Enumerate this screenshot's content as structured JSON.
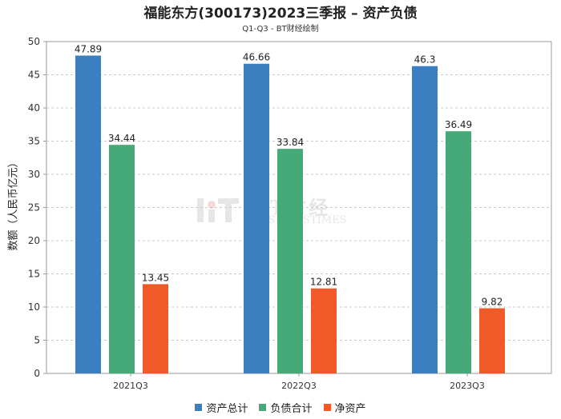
{
  "title": "福能东方(300173)2023三季报 – 资产负债",
  "subtitle": "Q1-Q3 - BT财经绘制",
  "watermark": {
    "main": "BT财经",
    "sub": "BUSINESSTIMES"
  },
  "chart_data": {
    "type": "bar",
    "ylabel": "数额（人民币亿元）",
    "xlabel": "",
    "ylim": [
      0,
      50
    ],
    "yticks": [
      0,
      5,
      10,
      15,
      20,
      25,
      30,
      35,
      40,
      45,
      50
    ],
    "categories": [
      "2021Q3",
      "2022Q3",
      "2023Q3"
    ],
    "series": [
      {
        "name": "资产总计",
        "color": "#3a80c1",
        "values": [
          47.89,
          46.66,
          46.3
        ],
        "labels": [
          "47.89",
          "46.66",
          "46.3"
        ]
      },
      {
        "name": "负债合计",
        "color": "#46aa78",
        "values": [
          34.44,
          33.84,
          36.49
        ],
        "labels": [
          "34.44",
          "33.84",
          "36.49"
        ]
      },
      {
        "name": "净资产",
        "color": "#f05a28",
        "values": [
          13.45,
          12.81,
          9.82
        ],
        "labels": [
          "13.45",
          "12.81",
          "9.82"
        ]
      }
    ],
    "grid": true,
    "legend_position": "bottom"
  }
}
